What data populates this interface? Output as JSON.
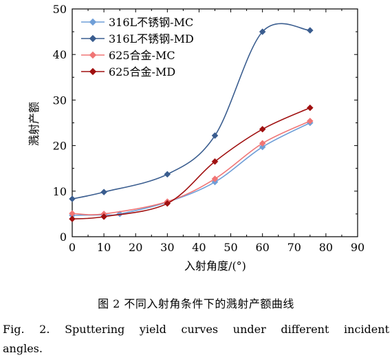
{
  "chart_data": {
    "type": "line",
    "xlabel": "入射角度/(°)",
    "ylabel": "溅射产额",
    "xlim": [
      0,
      90
    ],
    "ylim": [
      0,
      50
    ],
    "xticks": [
      "0",
      "10",
      "20",
      "30",
      "40",
      "50",
      "60",
      "70",
      "80",
      "90"
    ],
    "yticks": [
      "0",
      "10",
      "20",
      "30",
      "40",
      "50"
    ],
    "legend_position": "top-left",
    "grid": false,
    "series": [
      {
        "name": "316L不锈钢-MC",
        "color": "#6f9fd8",
        "marker": "diamond",
        "x": [
          0,
          10,
          15,
          30,
          45,
          60,
          75
        ],
        "y": [
          4.7,
          4.8,
          5.0,
          7.6,
          12.0,
          19.7,
          25.0
        ]
      },
      {
        "name": "316L不锈钢-MD",
        "color": "#3a5d8f",
        "marker": "diamond",
        "x": [
          0,
          10,
          30,
          45,
          60,
          75
        ],
        "y": [
          8.3,
          9.8,
          13.7,
          22.2,
          45.0,
          45.3
        ]
      },
      {
        "name": "625合金-MC",
        "color": "#f07575",
        "marker": "diamond",
        "x": [
          0,
          10,
          30,
          45,
          60,
          75
        ],
        "y": [
          5.1,
          5.0,
          7.7,
          12.7,
          20.5,
          25.4
        ]
      },
      {
        "name": "625合金-MD",
        "color": "#a01010",
        "marker": "diamond",
        "x": [
          0,
          10,
          30,
          45,
          60,
          75
        ],
        "y": [
          3.9,
          4.4,
          7.3,
          16.5,
          23.6,
          28.3
        ]
      }
    ]
  },
  "caption": {
    "cn": "图 2    不同入射角条件下的溅射产额曲线",
    "en_line1": "Fig. 2. Sputtering yield curves under different incident",
    "en_line2": "angles."
  }
}
